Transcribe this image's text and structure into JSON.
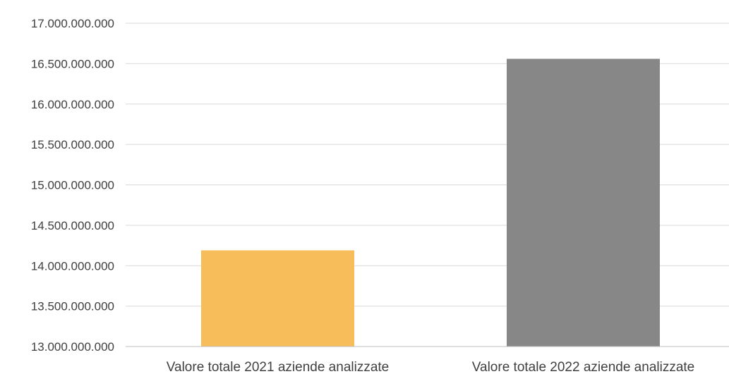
{
  "chart_data": {
    "type": "bar",
    "title": "",
    "xlabel": "",
    "ylabel": "",
    "categories": [
      "Valore totale 2021 aziende analizzate",
      "Valore totale 2022 aziende analizzate"
    ],
    "values": [
      14190000000,
      16560000000
    ],
    "bar_colors": [
      "#f8bd5b",
      "#878787"
    ],
    "ylim": [
      13000000000,
      17000000000
    ],
    "yticks": [
      13000000000,
      13500000000,
      14000000000,
      14500000000,
      15000000000,
      15500000000,
      16000000000,
      16500000000,
      17000000000
    ],
    "ytick_labels": [
      "13.000.000.000",
      "13.500.000.000",
      "14.000.000.000",
      "14.500.000.000",
      "15.000.000.000",
      "15.500.000.000",
      "16.000.000.000",
      "16.500.000.000",
      "17.000.000.000"
    ],
    "grid": true,
    "legend": "none"
  }
}
